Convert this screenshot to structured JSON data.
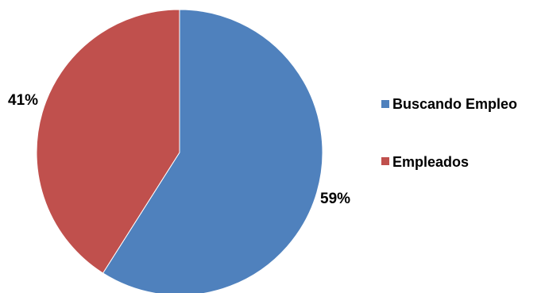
{
  "chart_data": {
    "type": "pie",
    "title": "",
    "start_angle_deg": 0,
    "direction": "clockwise",
    "legend_position": "right",
    "slices": [
      {
        "name": "Buscando Empleo",
        "value": 59,
        "label": "59%",
        "color": "#4f81bd"
      },
      {
        "name": "Empleados",
        "value": 41,
        "label": "41%",
        "color": "#c0504d"
      }
    ]
  }
}
